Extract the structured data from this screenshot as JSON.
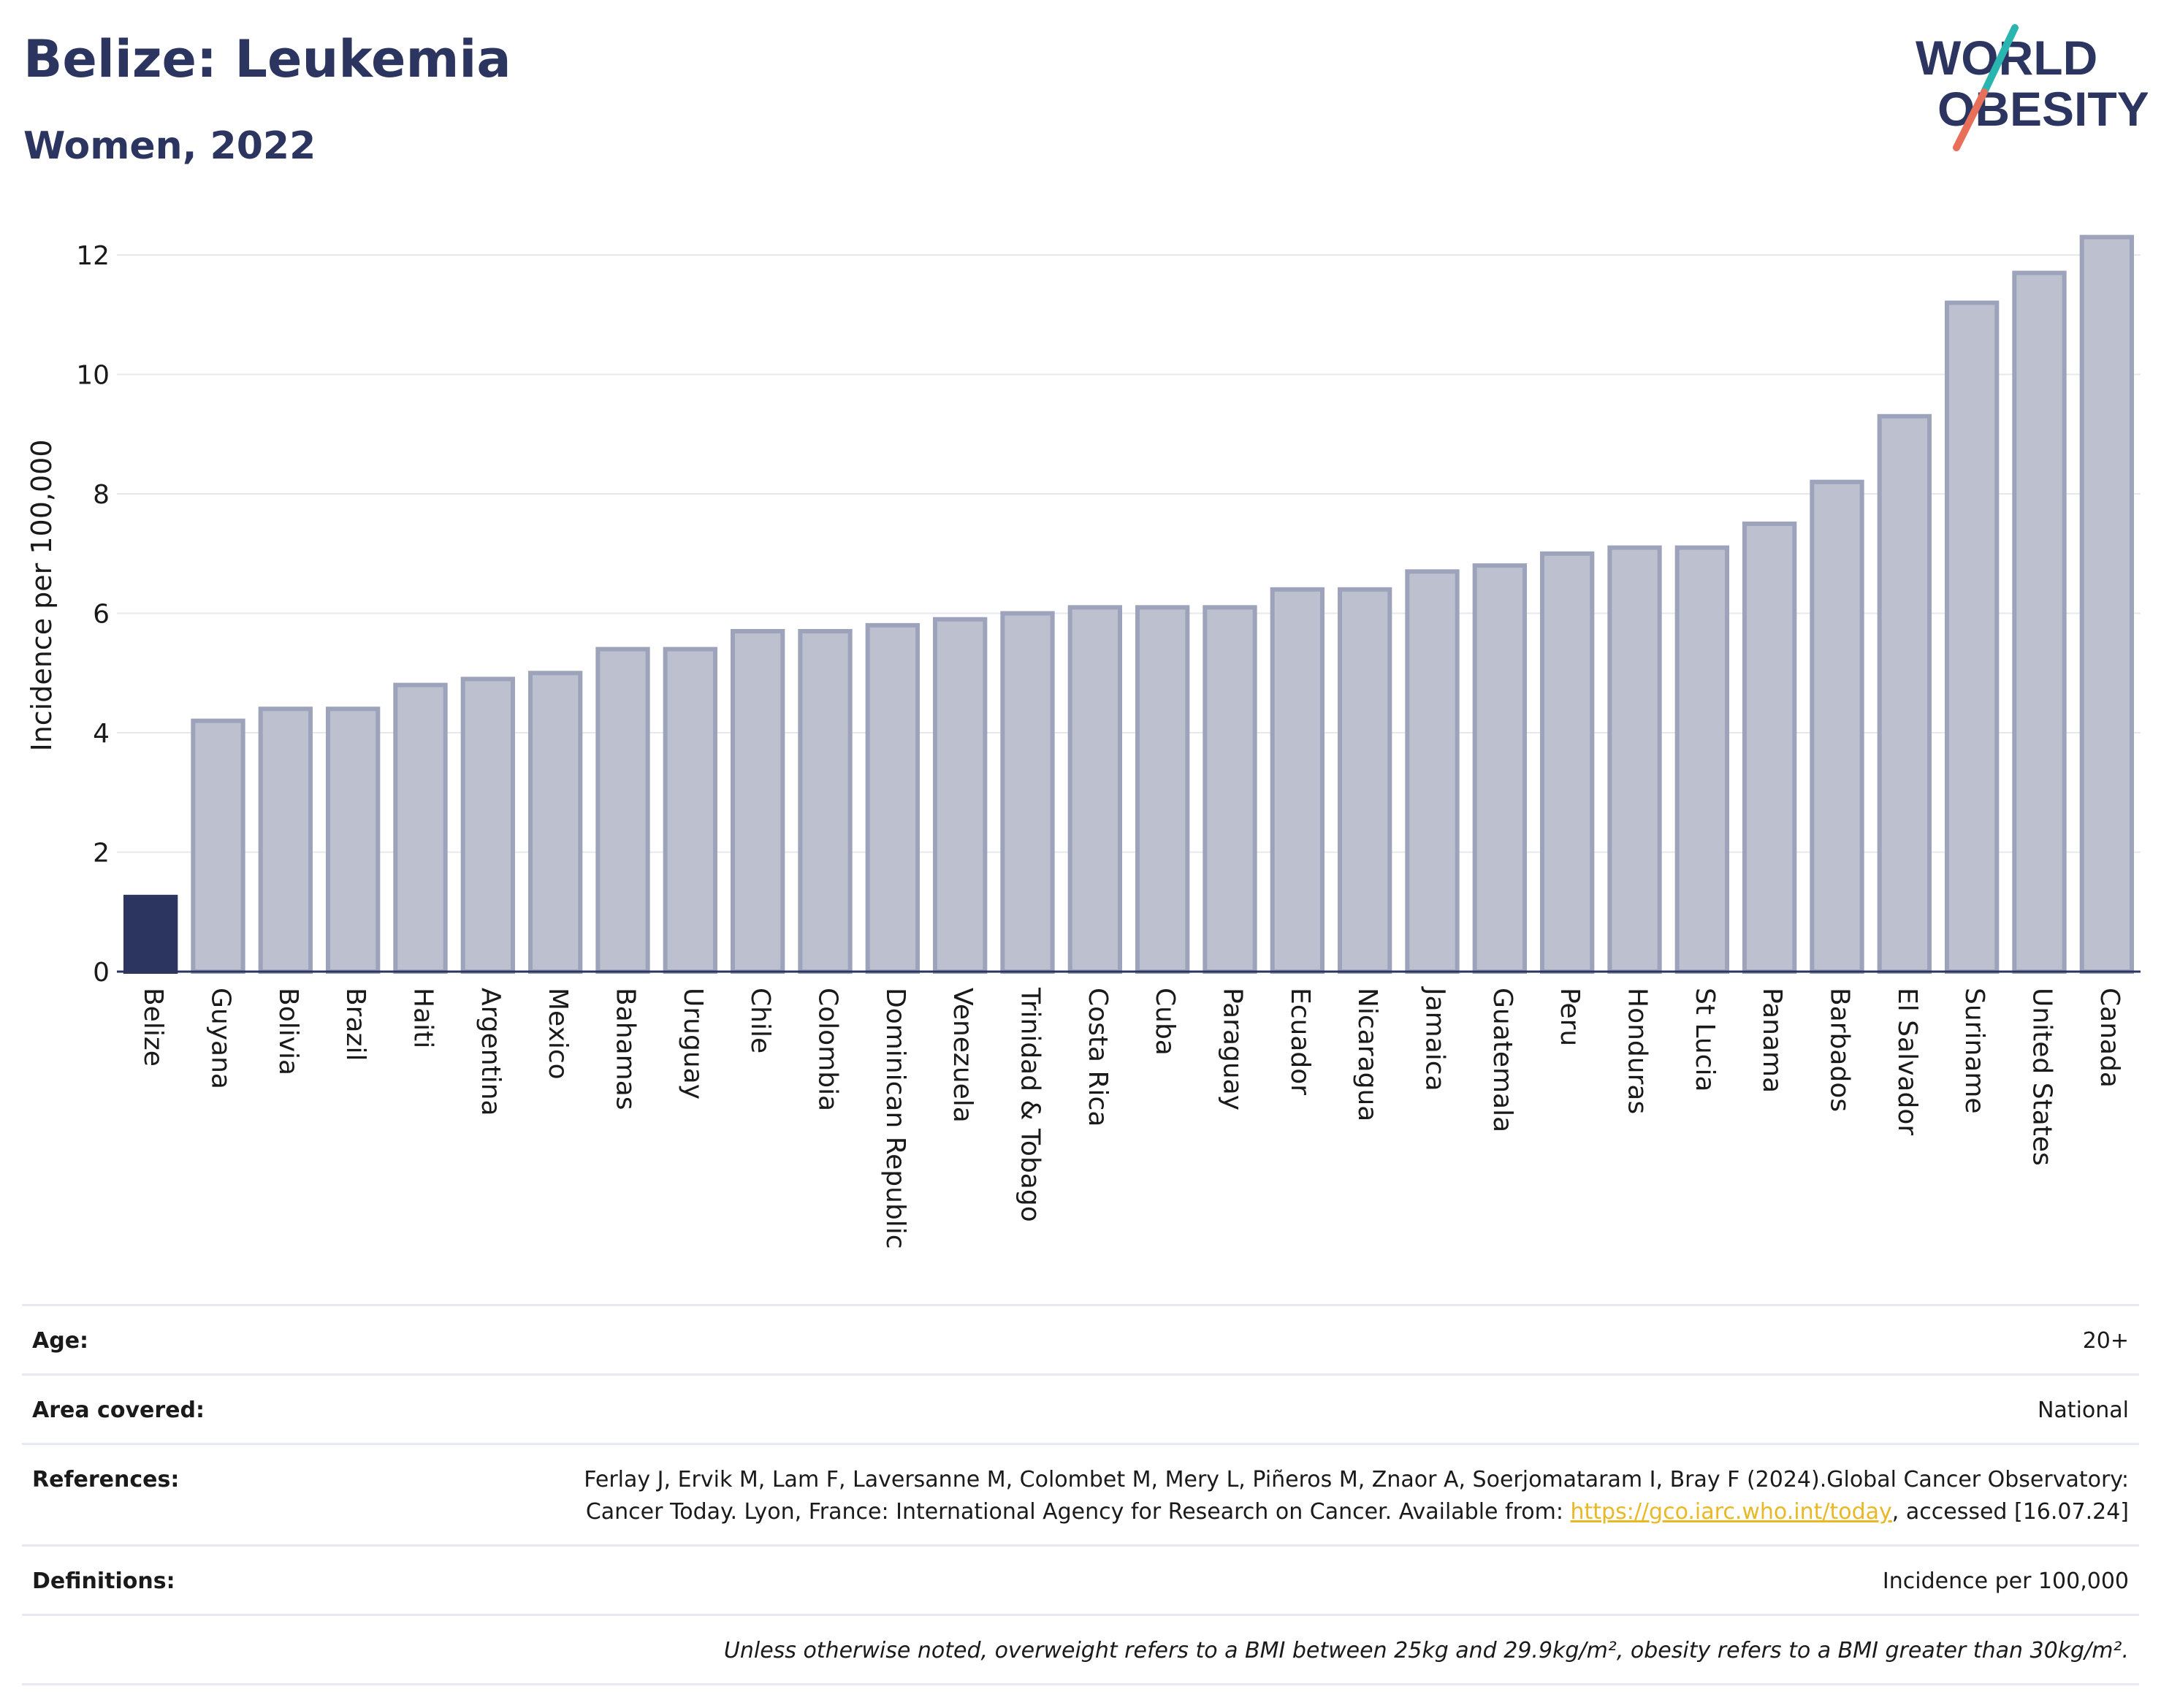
{
  "header": {
    "title": "Belize: Leukemia",
    "subtitle": "Women, 2022"
  },
  "logo": {
    "line1": "WORLD",
    "line2": "OBESITY"
  },
  "chart_data": {
    "type": "bar",
    "title": "Belize: Leukemia",
    "subtitle": "Women, 2022",
    "ylabel": "Incidence per 100,000",
    "xlabel": "",
    "ylim": [
      0,
      12.6
    ],
    "yticks": [
      0,
      2,
      4,
      6,
      8,
      10,
      12
    ],
    "grid": true,
    "highlight": "Belize",
    "colors": {
      "highlight": "#2b3560",
      "bar": "#bdc1cf",
      "bar_edge": "#9ca3ba"
    },
    "categories": [
      "Belize",
      "Guyana",
      "Bolivia",
      "Brazil",
      "Haiti",
      "Argentina",
      "Mexico",
      "Bahamas",
      "Uruguay",
      "Chile",
      "Colombia",
      "Dominican Republic",
      "Venezuela",
      "Trinidad & Tobago",
      "Costa Rica",
      "Cuba",
      "Paraguay",
      "Ecuador",
      "Nicaragua",
      "Jamaica",
      "Guatemala",
      "Peru",
      "Honduras",
      "St Lucia",
      "Panama",
      "Barbados",
      "El Salvador",
      "Suriname",
      "United States",
      "Canada"
    ],
    "values": [
      1.25,
      4.2,
      4.4,
      4.4,
      4.8,
      4.9,
      5.0,
      5.4,
      5.4,
      5.7,
      5.7,
      5.8,
      5.9,
      6.0,
      6.1,
      6.1,
      6.1,
      6.4,
      6.4,
      6.7,
      6.8,
      7.0,
      7.1,
      7.1,
      7.5,
      8.2,
      9.3,
      11.2,
      11.7,
      12.3
    ]
  },
  "info": {
    "age_label": "Age:",
    "age_value": "20+",
    "area_label": "Area covered:",
    "area_value": "National",
    "references_label": "References:",
    "references_text": "Ferlay J, Ervik M, Lam F, Laversanne M, Colombet M, Mery L, Piñeros M, Znaor A, Soerjomataram I, Bray F (2024).Global Cancer Observatory: Cancer Today. Lyon, France: International Agency for Research on Cancer. Available from: ",
    "references_link": "https://gco.iarc.who.int/today",
    "references_tail": ", accessed [16.07.24]",
    "definitions_label": "Definitions:",
    "definitions_value": "Incidence per 100,000",
    "note": "Unless otherwise noted, overweight refers to a BMI between 25kg and 29.9kg/m², obesity refers to a BMI greater than 30kg/m²."
  }
}
